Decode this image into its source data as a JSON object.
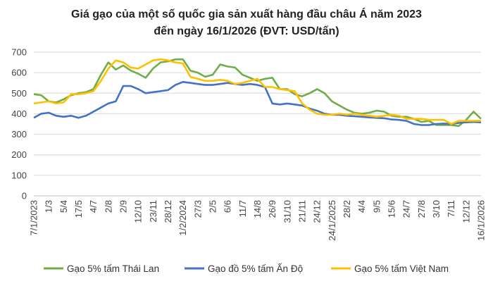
{
  "chart_data": {
    "type": "line",
    "title": "Giá gạo của một số quốc gia sản xuất hàng đầu châu Á năm 2023",
    "subtitle": "đến ngày 16/1/2026  (ĐVT: USD/tấn)",
    "xlabel": "",
    "ylabel": "",
    "ylim": [
      0,
      700
    ],
    "yticks": [
      0,
      100,
      200,
      300,
      400,
      500,
      600,
      700
    ],
    "grid": true,
    "legend_position": "bottom",
    "x_tick_labels": [
      "7/1/2023",
      "1/3",
      "5/4",
      "17/5",
      "4/7",
      "2/8",
      "2/9",
      "12/10",
      "23/11",
      "28/12",
      "1/2/2024",
      "27/3",
      "2/5",
      "6/6",
      "11/7",
      "14/8",
      "26/9",
      "31/10",
      "21/11",
      "24/12",
      "24/1/2025",
      "28/2",
      "4/4",
      "9/5",
      "15/6",
      "24/7",
      "27/8",
      "3/10",
      "7/11",
      "12/12",
      "16/1/2026"
    ],
    "points_per_label": 2,
    "series": [
      {
        "name": "Gạo 5% tấm Thái Lan",
        "color": "#70AD47",
        "values": [
          495,
          490,
          460,
          455,
          470,
          490,
          500,
          505,
          520,
          590,
          650,
          615,
          635,
          610,
          595,
          575,
          620,
          650,
          655,
          665,
          665,
          610,
          600,
          580,
          590,
          640,
          630,
          625,
          590,
          575,
          560,
          570,
          575,
          520,
          520,
          495,
          485,
          500,
          520,
          500,
          460,
          440,
          420,
          405,
          400,
          405,
          415,
          410,
          390,
          385,
          385,
          375,
          360,
          365,
          345,
          345,
          345,
          340,
          370,
          410,
          375
        ]
      },
      {
        "name": "Gạo đồ 5% tấm Ấn Độ",
        "color": "#4472C4",
        "values": [
          380,
          400,
          405,
          390,
          385,
          390,
          380,
          390,
          410,
          430,
          450,
          460,
          535,
          535,
          520,
          500,
          505,
          510,
          515,
          540,
          555,
          550,
          545,
          540,
          540,
          545,
          550,
          545,
          540,
          545,
          540,
          530,
          450,
          445,
          450,
          445,
          440,
          425,
          415,
          400,
          395,
          395,
          390,
          388,
          385,
          382,
          380,
          378,
          372,
          370,
          365,
          350,
          345,
          345,
          350,
          352,
          350,
          355,
          358,
          360,
          358
        ]
      },
      {
        "name": "Gạo 5% tấm Việt Nam",
        "color": "#FFC000",
        "values": [
          450,
          455,
          460,
          450,
          455,
          495,
          495,
          500,
          510,
          560,
          620,
          660,
          650,
          625,
          620,
          640,
          660,
          665,
          660,
          650,
          645,
          580,
          570,
          560,
          560,
          565,
          560,
          545,
          550,
          560,
          570,
          530,
          530,
          520,
          515,
          510,
          450,
          420,
          400,
          395,
          395,
          400,
          395,
          400,
          395,
          390,
          385,
          390,
          395,
          390,
          375,
          375,
          375,
          370,
          370,
          370,
          350,
          365,
          365,
          365,
          365
        ]
      }
    ]
  }
}
